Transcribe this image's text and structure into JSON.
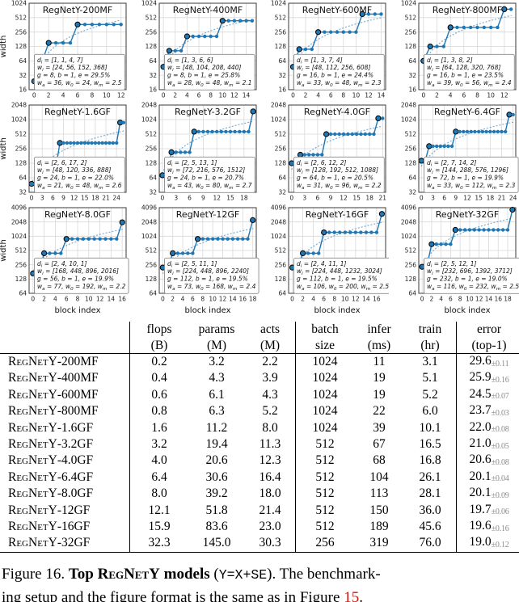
{
  "figure": {
    "ylabel": "width",
    "xlabel": "block index",
    "colors": {
      "line": "#1f77b4",
      "dotted_trend": "#1f77b4",
      "grid": "#d9d9d9",
      "spine": "#3a3a3a",
      "marker_edge": "#000000",
      "annotation_border": "#8a8a8a",
      "annotation_bg": "#ffffff"
    }
  },
  "chart_data": [
    {
      "type": "line",
      "title": "RegNetY-200MF",
      "ylabel": "width",
      "depths": [
        1,
        1,
        4,
        7
      ],
      "widths": [
        24,
        56,
        152,
        368
      ],
      "g": 8,
      "b": 1,
      "e_pct": 29.5,
      "wa": 36,
      "w0": 24,
      "wm": 2.5,
      "annotation": [
        "d_{i} = [1, 1, 4, 7]",
        "w_{i} = [24, 56, 152, 368]",
        "g = 8, b = 1, e = 29.5%",
        "w_{a} = 36, w_{0} = 24, w_{m} = 2.5"
      ],
      "xticks": [
        0,
        2,
        4,
        6,
        8,
        10,
        12
      ],
      "yticks": [
        16,
        32,
        64,
        128,
        256,
        512,
        1024
      ],
      "ylim": [
        16,
        1024
      ]
    },
    {
      "type": "line",
      "title": "RegNetY-400MF",
      "depths": [
        1,
        3,
        6,
        6
      ],
      "widths": [
        48,
        104,
        208,
        440
      ],
      "g": 8,
      "b": 1,
      "e_pct": 25.8,
      "wa": 28,
      "w0": 48,
      "wm": 2.1,
      "annotation": [
        "d_{i} = [1, 3, 6, 6]",
        "w_{i} = [48, 104, 208, 440]",
        "g = 8, b = 1, e = 25.8%",
        "w_{a} = 28, w_{0} = 48, w_{m} = 2.1"
      ],
      "xticks": [
        0,
        2,
        4,
        6,
        8,
        10,
        12,
        14
      ],
      "yticks": [
        16,
        32,
        64,
        128,
        256,
        512,
        1024
      ],
      "ylim": [
        16,
        1024
      ]
    },
    {
      "type": "line",
      "title": "RegNetY-600MF",
      "depths": [
        1,
        3,
        7,
        4
      ],
      "widths": [
        48,
        112,
        256,
        608
      ],
      "g": 16,
      "b": 1,
      "e_pct": 24.4,
      "wa": 33,
      "w0": 48,
      "wm": 2.3,
      "annotation": [
        "d_{i} = [1, 3, 7, 4]",
        "w_{i} = [48, 112, 256, 608]",
        "g = 16, b = 1, e = 24.4%",
        "w_{a} = 33, w_{0} = 48, w_{m} = 2.3"
      ],
      "xticks": [
        0,
        2,
        4,
        6,
        8,
        10,
        12,
        14
      ],
      "yticks": [
        16,
        32,
        64,
        128,
        256,
        512,
        1024
      ],
      "ylim": [
        16,
        1024
      ]
    },
    {
      "type": "line",
      "title": "RegNetY-800MF",
      "depths": [
        1,
        3,
        8,
        2
      ],
      "widths": [
        64,
        128,
        320,
        768
      ],
      "g": 16,
      "b": 1,
      "e_pct": 23.5,
      "wa": 39,
      "w0": 56,
      "wm": 2.4,
      "annotation": [
        "d_{i} = [1, 3, 8, 2]",
        "w_{i} = [64, 128, 320, 768]",
        "g = 16, b = 1, e = 23.5%",
        "w_{a} = 39, w_{0} = 56, w_{m} = 2.4"
      ],
      "xticks": [
        0,
        2,
        4,
        6,
        8,
        10,
        12
      ],
      "yticks": [
        16,
        32,
        64,
        128,
        256,
        512,
        1024
      ],
      "ylim": [
        16,
        1024
      ]
    },
    {
      "type": "line",
      "title": "RegNetY-1.6GF",
      "ylabel": "width",
      "depths": [
        2,
        6,
        17,
        2
      ],
      "widths": [
        48,
        120,
        336,
        888
      ],
      "g": 24,
      "b": 1,
      "e_pct": 22.0,
      "wa": 21,
      "w0": 48,
      "wm": 2.6,
      "annotation": [
        "d_{i} = [2, 6, 17, 2]",
        "w_{i} = [48, 120, 336, 888]",
        "g = 24, b = 1, e = 22.0%",
        "w_{a} = 21, w_{0} = 48, w_{m} = 2.6"
      ],
      "xticks": [
        0,
        3,
        6,
        9,
        12,
        15,
        18,
        21,
        24
      ],
      "yticks": [
        32,
        64,
        128,
        256,
        512,
        1024,
        2048
      ],
      "ylim": [
        32,
        2048
      ]
    },
    {
      "type": "line",
      "title": "RegNetY-3.2GF",
      "depths": [
        2,
        5,
        13,
        1
      ],
      "widths": [
        72,
        216,
        576,
        1512
      ],
      "g": 24,
      "b": 1,
      "e_pct": 20.7,
      "wa": 43,
      "w0": 80,
      "wm": 2.7,
      "annotation": [
        "d_{i} = [2, 5, 13, 1]",
        "w_{i} = [72, 216, 576, 1512]",
        "g = 24, b = 1, e = 20.7%",
        "w_{a} = 43, w_{0} = 80, w_{m} = 2.7"
      ],
      "xticks": [
        0,
        3,
        6,
        9,
        12,
        15,
        18
      ],
      "yticks": [
        32,
        64,
        128,
        256,
        512,
        1024,
        2048
      ],
      "ylim": [
        32,
        2048
      ]
    },
    {
      "type": "line",
      "title": "RegNetY-4.0GF",
      "depths": [
        2,
        6,
        12,
        2
      ],
      "widths": [
        128,
        192,
        512,
        1088
      ],
      "g": 64,
      "b": 1,
      "e_pct": 20.5,
      "wa": 31,
      "w0": 96,
      "wm": 2.2,
      "annotation": [
        "d_{i} = [2, 6, 12, 2]",
        "w_{i} = [128, 192, 512, 1088]",
        "g = 64, b = 1, e = 20.5%",
        "w_{a} = 31, w_{0} = 96, w_{m} = 2.2"
      ],
      "xticks": [
        0,
        3,
        6,
        9,
        12,
        15,
        18,
        21
      ],
      "yticks": [
        32,
        64,
        128,
        256,
        512,
        1024,
        2048
      ],
      "ylim": [
        32,
        2048
      ]
    },
    {
      "type": "line",
      "title": "RegNetY-6.4GF",
      "depths": [
        2,
        7,
        14,
        2
      ],
      "widths": [
        144,
        288,
        576,
        1296
      ],
      "g": 72,
      "b": 1,
      "e_pct": 19.9,
      "wa": 33,
      "w0": 112,
      "wm": 2.3,
      "annotation": [
        "d_{i} = [2, 7, 14, 2]",
        "w_{i} = [144, 288, 576, 1296]",
        "g = 72, b = 1, e = 19.9%",
        "w_{a} = 33, w_{0} = 112, w_{m} = 2.3"
      ],
      "xticks": [
        0,
        3,
        6,
        9,
        12,
        15,
        18,
        21,
        24
      ],
      "yticks": [
        32,
        64,
        128,
        256,
        512,
        1024,
        2048
      ],
      "ylim": [
        32,
        2048
      ]
    },
    {
      "type": "line",
      "title": "RegNetY-8.0GF",
      "ylabel": "width",
      "xlabel": "block index",
      "depths": [
        2,
        4,
        10,
        1
      ],
      "widths": [
        168,
        448,
        896,
        2016
      ],
      "g": 56,
      "b": 1,
      "e_pct": 19.9,
      "wa": 77,
      "w0": 192,
      "wm": 2.2,
      "annotation": [
        "d_{i} = [2, 4, 10, 1]",
        "w_{i} = [168, 448, 896, 2016]",
        "g = 56, b = 1, e = 19.9%",
        "w_{a} = 77, w_{0} = 192, w_{m} = 2.2"
      ],
      "xticks": [
        0,
        2,
        4,
        6,
        8,
        10,
        12,
        14,
        16
      ],
      "yticks": [
        64,
        128,
        256,
        512,
        1024,
        2048,
        4096
      ],
      "ylim": [
        64,
        4096
      ]
    },
    {
      "type": "line",
      "title": "RegNetY-12GF",
      "xlabel": "block index",
      "depths": [
        2,
        5,
        11,
        1
      ],
      "widths": [
        224,
        448,
        896,
        2240
      ],
      "g": 112,
      "b": 1,
      "e_pct": 19.5,
      "wa": 73,
      "w0": 168,
      "wm": 2.4,
      "annotation": [
        "d_{i} = [2, 5, 11, 1]",
        "w_{i} = [224, 448, 896, 2240]",
        "g = 112, b = 1, e = 19.5%",
        "w_{a} = 73, w_{0} = 168, w_{m} = 2.4"
      ],
      "xticks": [
        0,
        2,
        4,
        6,
        8,
        10,
        12,
        14,
        16,
        18
      ],
      "yticks": [
        64,
        128,
        256,
        512,
        1024,
        2048,
        4096
      ],
      "ylim": [
        64,
        4096
      ]
    },
    {
      "type": "line",
      "title": "RegNetY-16GF",
      "xlabel": "block index",
      "depths": [
        2,
        4,
        11,
        1
      ],
      "widths": [
        224,
        448,
        1232,
        3024
      ],
      "g": 112,
      "b": 1,
      "e_pct": 19.5,
      "wa": 106,
      "w0": 200,
      "wm": 2.5,
      "annotation": [
        "d_{i} = [2, 4, 11, 1]",
        "w_{i} = [224, 448, 1232, 3024]",
        "g = 112, b = 1, e = 19.5%",
        "w_{a} = 106, w_{0} = 200, w_{m} = 2.5"
      ],
      "xticks": [
        0,
        2,
        4,
        6,
        8,
        10,
        12,
        14,
        16
      ],
      "yticks": [
        64,
        128,
        256,
        512,
        1024,
        2048,
        4096
      ],
      "ylim": [
        64,
        4096
      ]
    },
    {
      "type": "line",
      "title": "RegNetY-32GF",
      "xlabel": "block index",
      "depths": [
        2,
        5,
        12,
        1
      ],
      "widths": [
        232,
        696,
        1392,
        3712
      ],
      "g": 232,
      "b": 1,
      "e_pct": 19.0,
      "wa": 116,
      "w0": 232,
      "wm": 2.5,
      "annotation": [
        "d_{i} = [2, 5, 12, 1]",
        "w_{i} = [232, 696, 1392, 3712]",
        "g = 232, b = 1, e = 19.0%",
        "w_{a} = 116, w_{0} = 232, w_{m} = 2.5"
      ],
      "xticks": [
        0,
        2,
        4,
        6,
        8,
        10,
        12,
        14,
        16,
        18
      ],
      "yticks": [
        64,
        128,
        256,
        512,
        1024,
        2048,
        4096
      ],
      "ylim": [
        64,
        4096
      ]
    }
  ],
  "table": {
    "headers": [
      {
        "line1": "flops",
        "line2": "(B)"
      },
      {
        "line1": "params",
        "line2": "(M)"
      },
      {
        "line1": "acts",
        "line2": "(M)"
      },
      {
        "line1": "batch",
        "line2": "size"
      },
      {
        "line1": "infer",
        "line2": "(ms)"
      },
      {
        "line1": "train",
        "line2": "(hr)"
      },
      {
        "line1": "error",
        "line2": "(top-1)"
      }
    ],
    "rows": [
      {
        "model_sc": "RegNetY",
        "model_suffix": "-200MF",
        "flops": "0.2",
        "params": "3.2",
        "acts": "2.2",
        "batch": "1024",
        "infer": "11",
        "train": "3.1",
        "error": "29.6",
        "error_pm": "±0.11"
      },
      {
        "model_sc": "RegNetY",
        "model_suffix": "-400MF",
        "flops": "0.4",
        "params": "4.3",
        "acts": "3.9",
        "batch": "1024",
        "infer": "19",
        "train": "5.1",
        "error": "25.9",
        "error_pm": "±0.16"
      },
      {
        "model_sc": "RegNetY",
        "model_suffix": "-600MF",
        "flops": "0.6",
        "params": "6.1",
        "acts": "4.3",
        "batch": "1024",
        "infer": "19",
        "train": "5.2",
        "error": "24.5",
        "error_pm": "±0.07"
      },
      {
        "model_sc": "RegNetY",
        "model_suffix": "-800MF",
        "flops": "0.8",
        "params": "6.3",
        "acts": "5.2",
        "batch": "1024",
        "infer": "22",
        "train": "6.0",
        "error": "23.7",
        "error_pm": "±0.03"
      },
      {
        "model_sc": "RegNetY",
        "model_suffix": "-1.6GF",
        "flops": "1.6",
        "params": "11.2",
        "acts": "8.0",
        "batch": "1024",
        "infer": "39",
        "train": "10.1",
        "error": "22.0",
        "error_pm": "±0.08"
      },
      {
        "model_sc": "RegNetY",
        "model_suffix": "-3.2GF",
        "flops": "3.2",
        "params": "19.4",
        "acts": "11.3",
        "batch": "512",
        "infer": "67",
        "train": "16.5",
        "error": "21.0",
        "error_pm": "±0.05"
      },
      {
        "model_sc": "RegNetY",
        "model_suffix": "-4.0GF",
        "flops": "4.0",
        "params": "20.6",
        "acts": "12.3",
        "batch": "512",
        "infer": "68",
        "train": "16.8",
        "error": "20.6",
        "error_pm": "±0.08"
      },
      {
        "model_sc": "RegNetY",
        "model_suffix": "-6.4GF",
        "flops": "6.4",
        "params": "30.6",
        "acts": "16.4",
        "batch": "512",
        "infer": "104",
        "train": "26.1",
        "error": "20.1",
        "error_pm": "±0.04"
      },
      {
        "model_sc": "RegNetY",
        "model_suffix": "-8.0GF",
        "flops": "8.0",
        "params": "39.2",
        "acts": "18.0",
        "batch": "512",
        "infer": "113",
        "train": "28.1",
        "error": "20.1",
        "error_pm": "±0.09"
      },
      {
        "model_sc": "RegNetY",
        "model_suffix": "-12GF",
        "flops": "12.1",
        "params": "51.8",
        "acts": "21.4",
        "batch": "512",
        "infer": "150",
        "train": "36.0",
        "error": "19.7",
        "error_pm": "±0.06"
      },
      {
        "model_sc": "RegNetY",
        "model_suffix": "-16GF",
        "flops": "15.9",
        "params": "83.6",
        "acts": "23.0",
        "batch": "512",
        "infer": "189",
        "train": "45.6",
        "error": "19.6",
        "error_pm": "±0.16"
      },
      {
        "model_sc": "RegNetY",
        "model_suffix": "-32GF",
        "flops": "32.3",
        "params": "145.0",
        "acts": "30.3",
        "batch": "256",
        "infer": "319",
        "train": "76.0",
        "error": "19.0",
        "error_pm": "±0.12"
      }
    ]
  },
  "caption": {
    "fig_label": "Figure 16. ",
    "bold_pre": "Top ",
    "bold_sc": "RegNetY",
    "bold_post": " models",
    "mid1": " (",
    "code": "Y=X+SE",
    "mid2a": "). The benchmark-",
    "mid2b": "ing setup and the figure format is the same as in Figure ",
    "ref": "15",
    "end": "."
  }
}
